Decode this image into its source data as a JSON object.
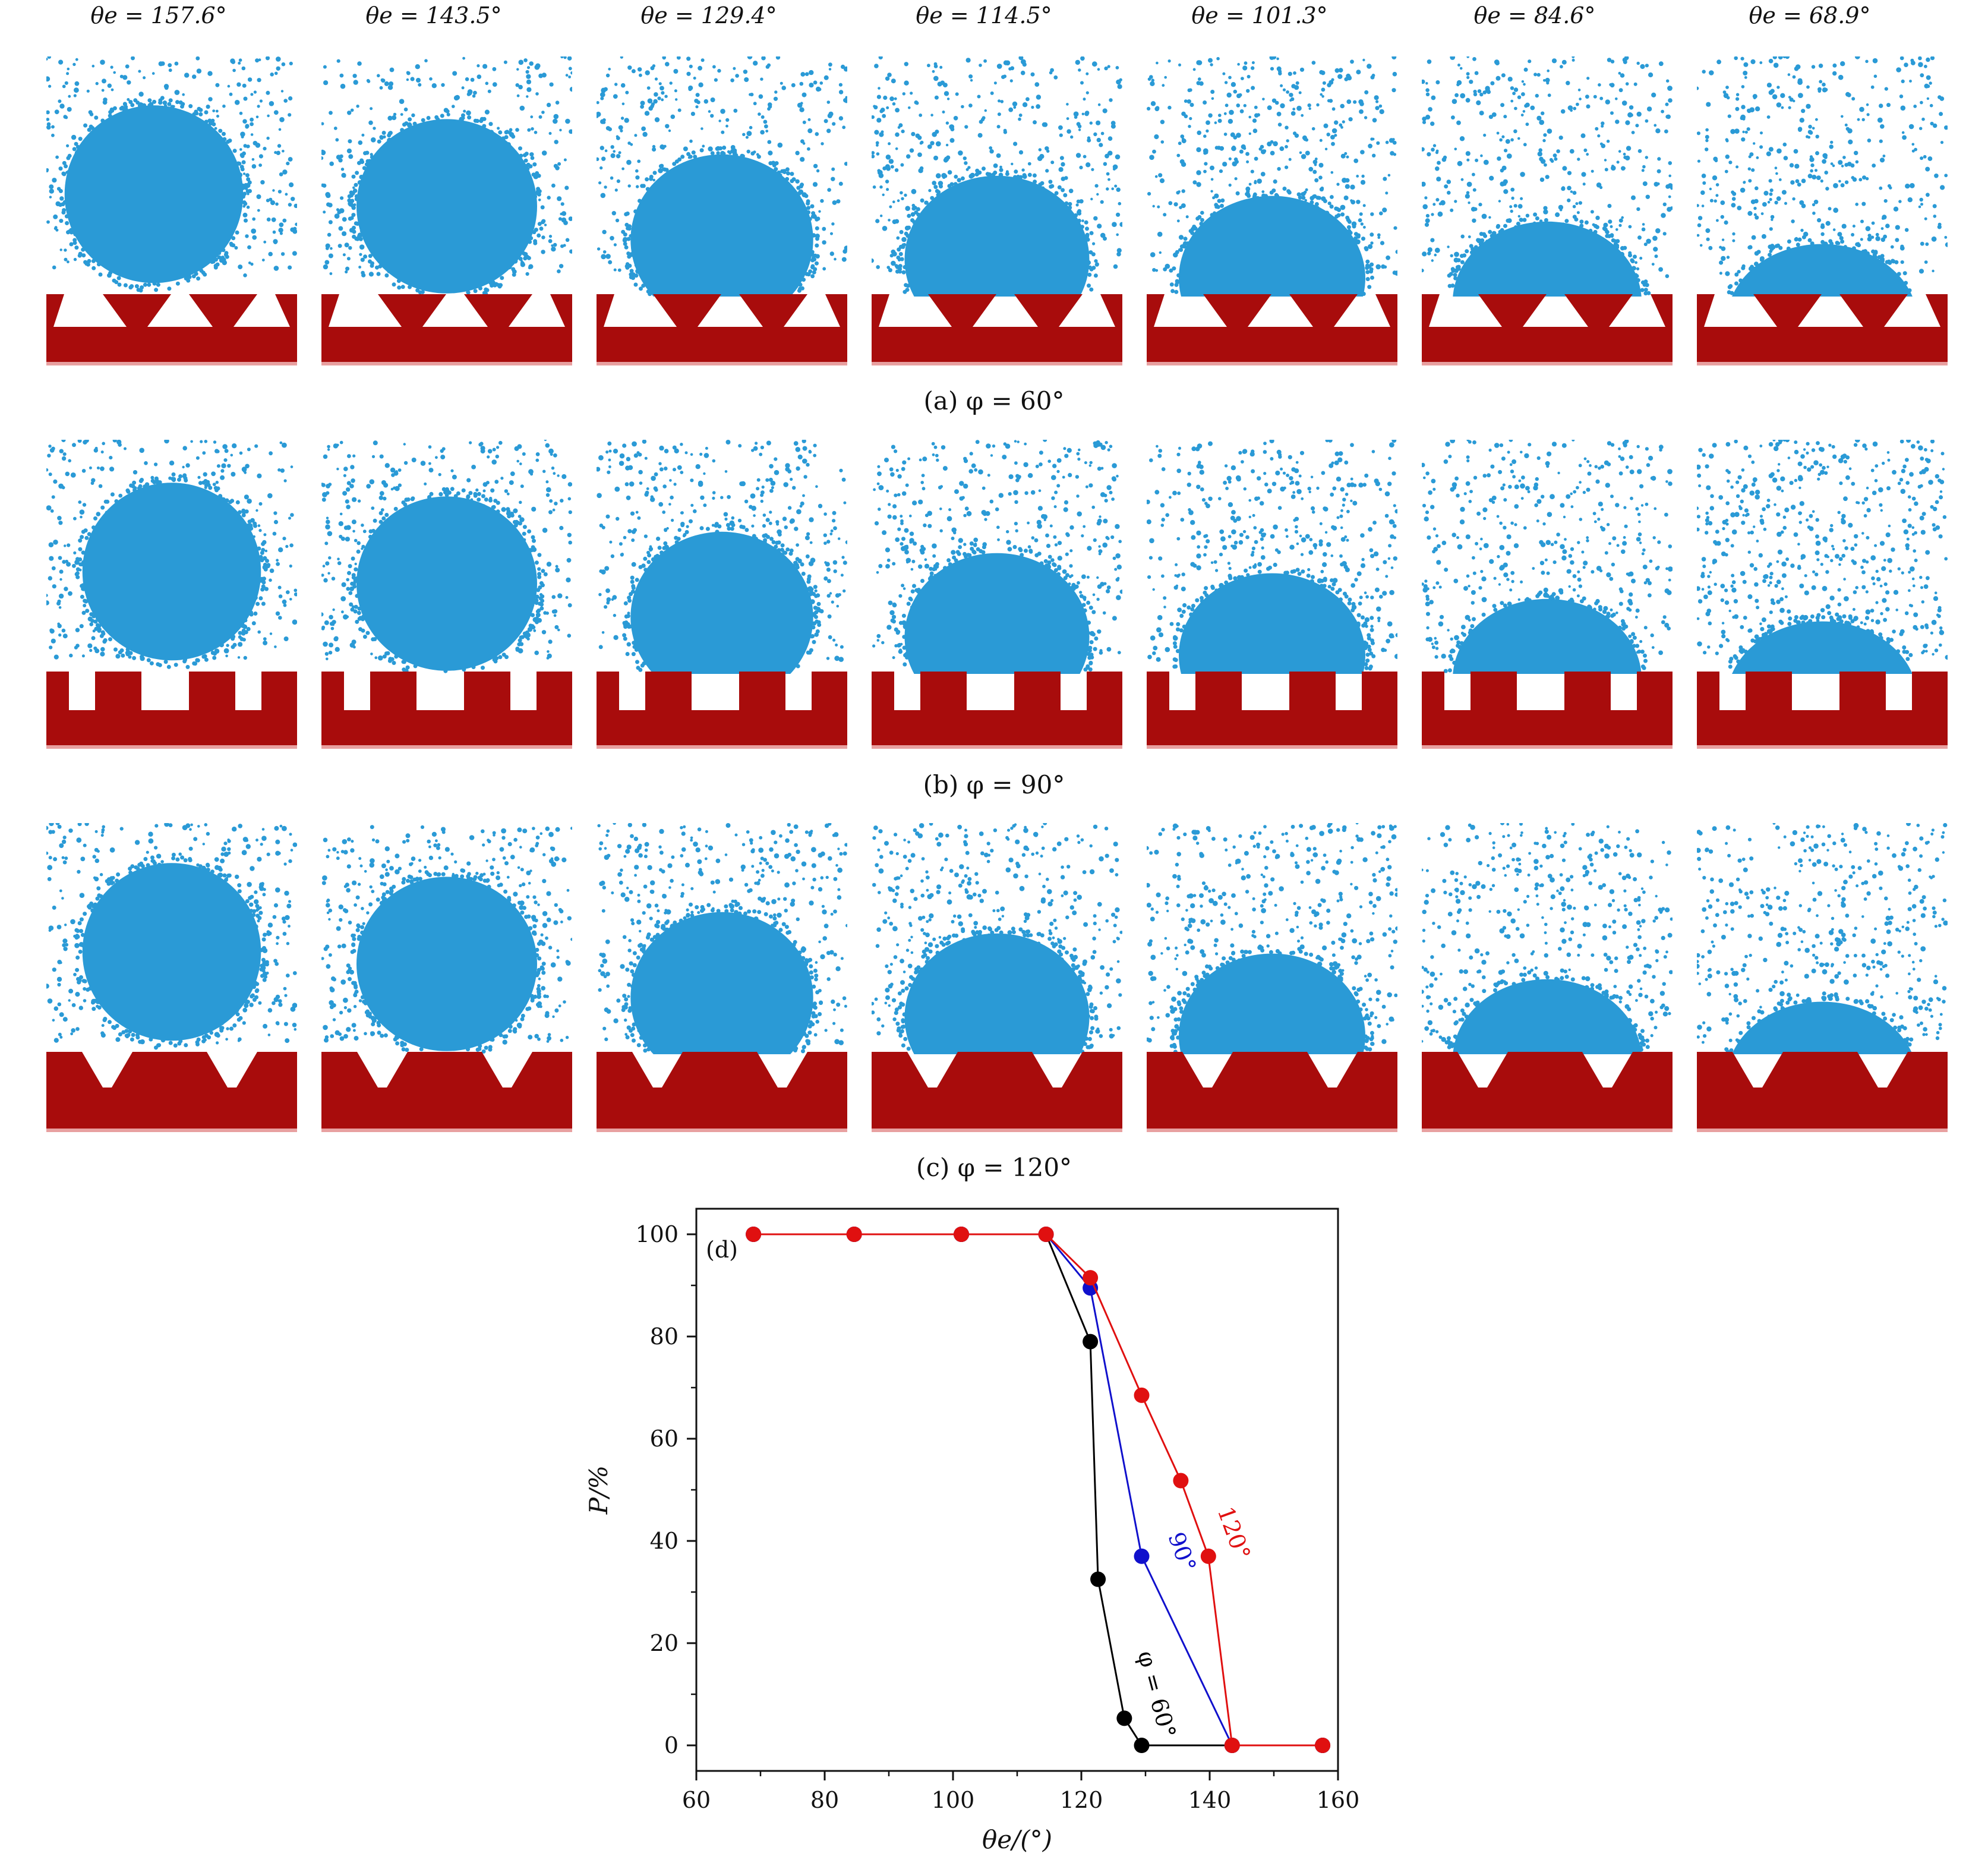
{
  "column_headers": [
    "θe = 157.6°",
    "θe = 143.5°",
    "θe = 129.4°",
    "θe = 114.5°",
    "θe = 101.3°",
    "θe = 84.6°",
    "θe = 68.9°"
  ],
  "rows": [
    {
      "caption": "(a)  φ = 60°",
      "structure": "inverted-trapezoid",
      "theta_e": [
        157.6,
        143.5,
        129.4,
        114.5,
        101.3,
        84.6,
        68.9
      ]
    },
    {
      "caption": "(b)   φ = 90°",
      "structure": "rectangular",
      "theta_e": [
        157.6,
        143.5,
        129.4,
        114.5,
        101.3,
        84.6,
        68.9
      ]
    },
    {
      "caption": "(c)  φ = 120°",
      "structure": "trapezoid",
      "theta_e": [
        157.6,
        143.5,
        129.4,
        114.5,
        101.3,
        84.6,
        68.9
      ]
    }
  ],
  "colors": {
    "droplet": "#2a9ad6",
    "substrate": "#a80c0c",
    "series_60": "#000000",
    "series_90": "#1010cc",
    "series_120": "#e01010"
  },
  "chart_data": {
    "type": "line",
    "panel_label": "(d)",
    "xlabel": "θe/(°)",
    "ylabel": "P/%",
    "xlim": [
      60,
      160
    ],
    "ylim": [
      -5,
      105
    ],
    "xticks": [
      60,
      80,
      100,
      120,
      140,
      160
    ],
    "yticks": [
      0,
      20,
      40,
      60,
      80,
      100
    ],
    "grid": false,
    "series": [
      {
        "name": "φ = 60°",
        "color": "#000000",
        "x": [
          68.9,
          84.6,
          101.3,
          114.5,
          121.4,
          122.6,
          126.7,
          129.4,
          143.5,
          157.6
        ],
        "y": [
          100,
          100,
          100,
          100,
          79,
          32.5,
          5.3,
          0,
          0,
          0
        ]
      },
      {
        "name": "90°",
        "color": "#1010cc",
        "x": [
          68.9,
          84.6,
          101.3,
          114.5,
          121.4,
          129.4,
          143.5,
          157.6
        ],
        "y": [
          100,
          100,
          100,
          100,
          89.5,
          37,
          0,
          0
        ]
      },
      {
        "name": "120°",
        "color": "#e01010",
        "x": [
          68.9,
          84.6,
          101.3,
          114.5,
          121.4,
          129.4,
          135.5,
          139.8,
          143.5,
          157.6
        ],
        "y": [
          100,
          100,
          100,
          100,
          91.5,
          68.5,
          51.8,
          37,
          0,
          0
        ]
      }
    ]
  }
}
